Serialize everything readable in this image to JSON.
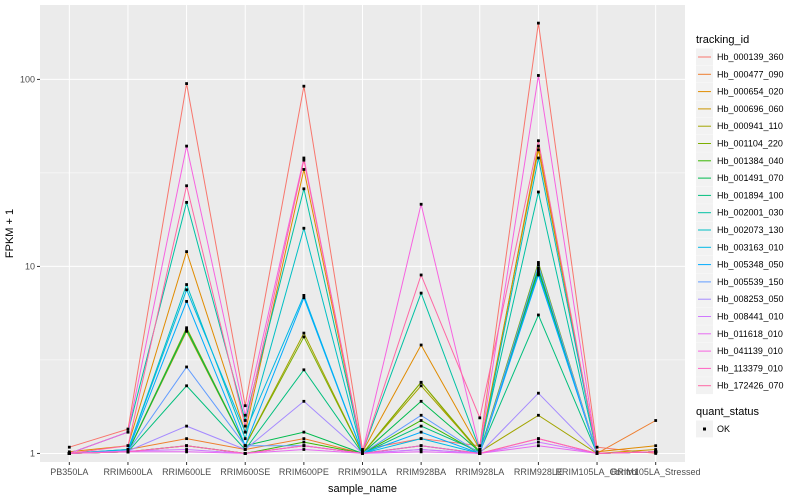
{
  "chart_data": {
    "type": "line",
    "xlabel": "sample_name",
    "ylabel": "FPKM + 1",
    "y_scale": "log10",
    "ylim": [
      0.9,
      250
    ],
    "y_ticks": [
      1,
      10,
      100
    ],
    "y_tick_labels": [
      "1",
      "10",
      "100"
    ],
    "grid": true,
    "background": "#ebebeb",
    "legend_position": "right",
    "categories": [
      "PB350LA",
      "RRIM600LA",
      "RRIM600LE",
      "RRIM600SE",
      "RRIM600PE",
      "RRIM901LA",
      "RRIM928BA",
      "RRIM928LA",
      "RRIM928LE",
      "RRIM105LA_Control",
      "RRIM105LA_Stressed"
    ],
    "series": [
      {
        "name": "Hb_000139_360",
        "color": "#F8766D",
        "values": [
          1.08,
          1.35,
          95,
          1.8,
          92,
          1.05,
          1.2,
          1.1,
          200,
          1.08,
          1.0
        ]
      },
      {
        "name": "Hb_000477_090",
        "color": "#EE7E2F",
        "values": [
          1.0,
          1.05,
          1.2,
          1.05,
          1.2,
          1.0,
          1.1,
          1.0,
          1.2,
          1.0,
          1.5
        ]
      },
      {
        "name": "Hb_000654_020",
        "color": "#E08B00",
        "values": [
          1.02,
          1.1,
          12,
          1.3,
          33,
          1.02,
          3.8,
          1.05,
          42,
          1.02,
          1.1
        ]
      },
      {
        "name": "Hb_000696_060",
        "color": "#CB9400",
        "values": [
          1.0,
          1.02,
          1.1,
          1.0,
          1.1,
          1.0,
          2.4,
          1.0,
          44,
          1.0,
          1.05
        ]
      },
      {
        "name": "Hb_000941_110",
        "color": "#A3A500",
        "values": [
          1.0,
          1.02,
          4.5,
          1.1,
          4.4,
          1.0,
          2.3,
          1.02,
          1.6,
          1.0,
          1.02
        ]
      },
      {
        "name": "Hb_001104_220",
        "color": "#7CAE00",
        "values": [
          1.0,
          1.02,
          4.7,
          1.1,
          4.2,
          1.0,
          2.4,
          1.02,
          10.5,
          1.0,
          1.02
        ]
      },
      {
        "name": "Hb_001384_040",
        "color": "#39B600",
        "values": [
          1.0,
          1.02,
          1.1,
          1.0,
          1.15,
          1.0,
          1.5,
          1.0,
          9.5,
          1.0,
          1.02
        ]
      },
      {
        "name": "Hb_001491_070",
        "color": "#00BB4E",
        "values": [
          1.0,
          1.02,
          4.6,
          1.1,
          1.3,
          1.0,
          1.9,
          1.02,
          9.8,
          1.0,
          1.02
        ]
      },
      {
        "name": "Hb_001894_100",
        "color": "#00BF7D",
        "values": [
          1.0,
          1.02,
          2.3,
          1.05,
          2.8,
          1.0,
          1.4,
          1.02,
          5.5,
          1.0,
          1.02
        ]
      },
      {
        "name": "Hb_002001_030",
        "color": "#00C1A3",
        "values": [
          1.0,
          1.3,
          22,
          1.5,
          26,
          1.02,
          7.2,
          1.05,
          25,
          1.0,
          1.02
        ]
      },
      {
        "name": "Hb_002073_130",
        "color": "#00BFC4",
        "values": [
          1.0,
          1.05,
          8.0,
          1.2,
          16,
          1.0,
          1.1,
          1.0,
          38,
          1.0,
          1.02
        ]
      },
      {
        "name": "Hb_003163_010",
        "color": "#00B8E5",
        "values": [
          1.0,
          1.05,
          7.5,
          1.3,
          7.0,
          1.0,
          1.2,
          1.0,
          9.2,
          1.0,
          1.02
        ]
      },
      {
        "name": "Hb_005348_050",
        "color": "#00ABFD",
        "values": [
          1.0,
          1.03,
          6.5,
          1.1,
          6.8,
          1.0,
          1.3,
          1.0,
          9.0,
          1.0,
          1.02
        ]
      },
      {
        "name": "Hb_005539_150",
        "color": "#619CFF",
        "values": [
          1.0,
          1.03,
          2.9,
          1.1,
          1.1,
          1.0,
          1.6,
          1.0,
          10.2,
          1.0,
          1.02
        ]
      },
      {
        "name": "Hb_008253_050",
        "color": "#A58AFF",
        "values": [
          1.0,
          1.03,
          1.4,
          1.05,
          1.9,
          1.0,
          1.05,
          1.0,
          2.1,
          1.0,
          1.02
        ]
      },
      {
        "name": "Hb_008441_010",
        "color": "#CF78FF",
        "values": [
          1.0,
          1.03,
          1.05,
          1.0,
          1.1,
          1.0,
          1.05,
          1.0,
          1.15,
          1.0,
          1.02
        ]
      },
      {
        "name": "Hb_011618_010",
        "color": "#E76BF3",
        "values": [
          1.0,
          1.02,
          1.02,
          1.0,
          1.05,
          1.0,
          1.02,
          1.0,
          1.1,
          1.0,
          1.02
        ]
      },
      {
        "name": "Hb_041139_010",
        "color": "#F763E0",
        "values": [
          1.0,
          1.3,
          44,
          1.6,
          38,
          1.02,
          21.5,
          1.05,
          105,
          1.0,
          1.02
        ]
      },
      {
        "name": "Hb_113379_010",
        "color": "#FF61C3",
        "values": [
          1.0,
          1.02,
          1.1,
          1.0,
          1.1,
          1.0,
          1.1,
          1.0,
          1.2,
          1.0,
          1.02
        ]
      },
      {
        "name": "Hb_172426_070",
        "color": "#FF67A4",
        "values": [
          1.0,
          1.1,
          27,
          1.4,
          37,
          1.02,
          9.0,
          1.55,
          47,
          1.0,
          1.02
        ]
      }
    ],
    "legend_title": "tracking_id",
    "shape_legend": {
      "title": "quant_status",
      "items": [
        "OK"
      ]
    }
  }
}
